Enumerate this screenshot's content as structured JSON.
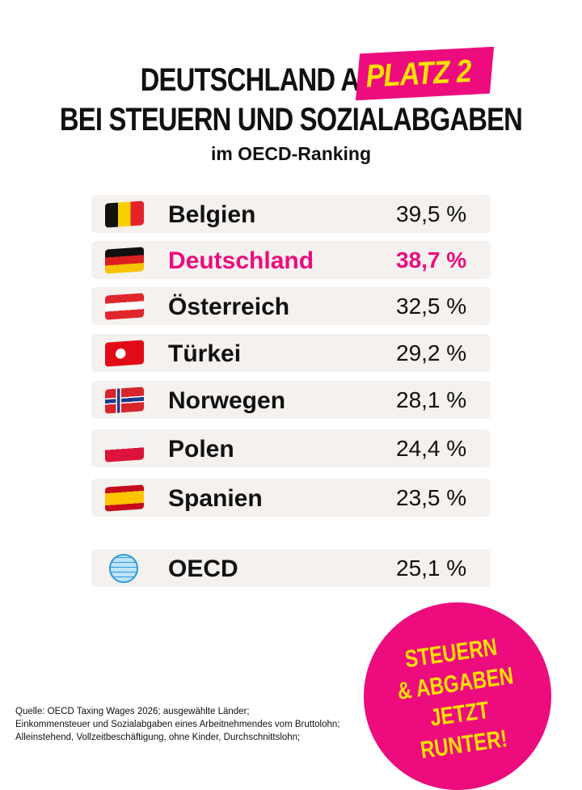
{
  "header": {
    "title_line1": "DEUTSCHLAND AUF",
    "highlight": "PLATZ 2",
    "title_line2": "BEI STEUERN UND SOZIALABGABEN",
    "subtitle": "im OECD-Ranking"
  },
  "colors": {
    "accent": "#ec0c7e",
    "highlight_text": "#ffe000",
    "row_bg": "#f4f1ee"
  },
  "chart_data": {
    "type": "table",
    "rows": [
      {
        "flag": "belgium-flag",
        "country": "Belgien",
        "value": "39,5 %"
      },
      {
        "flag": "germany-flag",
        "country": "Deutschland",
        "value": "38,7 %",
        "highlighted": true
      },
      {
        "flag": "austria-flag",
        "country": "Österreich",
        "value": "32,5 %"
      },
      {
        "flag": "turkey-flag",
        "country": "Türkei",
        "value": "29,2 %"
      },
      {
        "flag": "norway-flag",
        "country": "Norwegen",
        "value": "28,1 %"
      },
      {
        "flag": "poland-flag",
        "country": "Polen",
        "value": "24,4 %"
      },
      {
        "flag": "spain-flag",
        "country": "Spanien",
        "value": "23,5 %"
      }
    ],
    "average": {
      "icon": "globe-icon",
      "country": "OECD",
      "value": "25,1 %"
    }
  },
  "source": {
    "line1": "Quelle: OECD Taxing Wages 2026; ausgewählte Länder;",
    "line2": "Einkommensteuer und Sozialabgaben eines Arbeitnehmendes vom Bruttolohn;",
    "line3": "Alleinstehend, Vollzeitbeschäftigung, ohne Kinder, Durchschnittslohn;"
  },
  "badge": {
    "line1": "STEUERN",
    "line2": "& ABGABEN",
    "line3": "JETZT",
    "line4": "RUNTER!"
  }
}
